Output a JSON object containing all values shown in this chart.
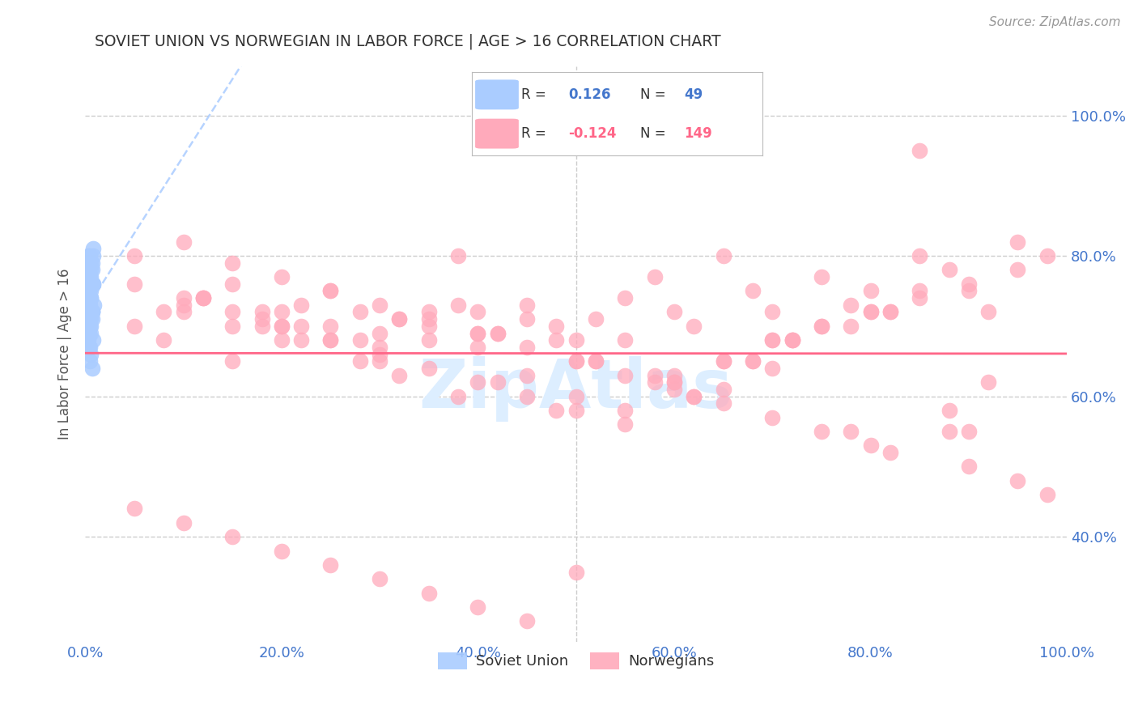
{
  "title": "SOVIET UNION VS NORWEGIAN IN LABOR FORCE | AGE > 16 CORRELATION CHART",
  "source": "Source: ZipAtlas.com",
  "ylabel": "In Labor Force | Age > 16",
  "xticklabels": [
    "0.0%",
    "20.0%",
    "40.0%",
    "60.0%",
    "80.0%",
    "100.0%"
  ],
  "yticklabels": [
    "100.0%",
    "80.0%",
    "60.0%",
    "40.0%"
  ],
  "xlim": [
    0.0,
    1.0
  ],
  "ylim": [
    0.25,
    1.07
  ],
  "yticks": [
    1.0,
    0.8,
    0.6,
    0.4
  ],
  "xticks": [
    0.0,
    0.2,
    0.4,
    0.6,
    0.8,
    1.0
  ],
  "background_color": "#ffffff",
  "grid_color": "#cccccc",
  "title_color": "#333333",
  "axis_label_color": "#555555",
  "tick_label_color": "#4477cc",
  "soviet_color": "#aaccff",
  "norwegian_color": "#ffaabb",
  "soviet_line_color": "#aaccff",
  "norwegian_line_color": "#ff6688",
  "watermark": "ZipAtlas",
  "watermark_color": "#ddeeff",
  "legend_label1": "Soviet Union",
  "legend_label2": "Norwegians",
  "soviet_x": [
    0.005,
    0.003,
    0.008,
    0.006,
    0.004,
    0.007,
    0.005,
    0.003,
    0.006,
    0.004,
    0.009,
    0.007,
    0.005,
    0.003,
    0.006,
    0.008,
    0.004,
    0.006,
    0.005,
    0.007,
    0.003,
    0.008,
    0.006,
    0.004,
    0.005,
    0.007,
    0.006,
    0.004,
    0.003,
    0.005,
    0.007,
    0.006,
    0.008,
    0.004,
    0.005,
    0.003,
    0.007,
    0.006,
    0.005,
    0.004,
    0.008,
    0.006,
    0.003,
    0.005,
    0.007,
    0.004,
    0.006,
    0.005,
    0.007
  ],
  "soviet_y": [
    0.79,
    0.8,
    0.81,
    0.78,
    0.77,
    0.79,
    0.8,
    0.76,
    0.75,
    0.74,
    0.73,
    0.72,
    0.71,
    0.7,
    0.69,
    0.68,
    0.67,
    0.66,
    0.65,
    0.64,
    0.75,
    0.76,
    0.74,
    0.73,
    0.72,
    0.71,
    0.7,
    0.69,
    0.68,
    0.67,
    0.78,
    0.77,
    0.76,
    0.75,
    0.74,
    0.73,
    0.72,
    0.71,
    0.7,
    0.69,
    0.8,
    0.79,
    0.78,
    0.77,
    0.76,
    0.75,
    0.74,
    0.73,
    0.72
  ],
  "norwegian_x": [
    0.05,
    0.08,
    0.1,
    0.12,
    0.15,
    0.18,
    0.2,
    0.22,
    0.25,
    0.28,
    0.3,
    0.32,
    0.35,
    0.38,
    0.4,
    0.42,
    0.45,
    0.48,
    0.5,
    0.52,
    0.55,
    0.58,
    0.6,
    0.62,
    0.65,
    0.68,
    0.7,
    0.72,
    0.75,
    0.78,
    0.8,
    0.82,
    0.85,
    0.88,
    0.9,
    0.92,
    0.95,
    0.98,
    0.15,
    0.2,
    0.25,
    0.3,
    0.35,
    0.4,
    0.45,
    0.5,
    0.55,
    0.6,
    0.65,
    0.7,
    0.1,
    0.15,
    0.2,
    0.25,
    0.3,
    0.35,
    0.4,
    0.45,
    0.5,
    0.55,
    0.6,
    0.65,
    0.7,
    0.75,
    0.8,
    0.85,
    0.9,
    0.12,
    0.18,
    0.22,
    0.28,
    0.32,
    0.38,
    0.42,
    0.48,
    0.52,
    0.58,
    0.62,
    0.68,
    0.72,
    0.78,
    0.82,
    0.88,
    0.05,
    0.1,
    0.15,
    0.2,
    0.25,
    0.3,
    0.35,
    0.4,
    0.45,
    0.5,
    0.55,
    0.6,
    0.65,
    0.7,
    0.75,
    0.8,
    0.85,
    0.9,
    0.95,
    0.08,
    0.12,
    0.18,
    0.22,
    0.28,
    0.32,
    0.38,
    0.42,
    0.48,
    0.52,
    0.58,
    0.62,
    0.68,
    0.72,
    0.78,
    0.82,
    0.88,
    0.92,
    0.05,
    0.1,
    0.15,
    0.2,
    0.25,
    0.3,
    0.35,
    0.4,
    0.45,
    0.5,
    0.55,
    0.6,
    0.65,
    0.7,
    0.75,
    0.8,
    0.85,
    0.9,
    0.95,
    0.98,
    0.05,
    0.1,
    0.15,
    0.2,
    0.25,
    0.3,
    0.35,
    0.4,
    0.45,
    0.5
  ],
  "norwegian_y": [
    0.7,
    0.68,
    0.72,
    0.74,
    0.76,
    0.71,
    0.7,
    0.73,
    0.75,
    0.72,
    0.69,
    0.71,
    0.68,
    0.8,
    0.72,
    0.69,
    0.73,
    0.7,
    0.68,
    0.71,
    0.74,
    0.77,
    0.72,
    0.7,
    0.8,
    0.75,
    0.72,
    0.68,
    0.77,
    0.73,
    0.75,
    0.72,
    0.8,
    0.78,
    0.75,
    0.72,
    0.82,
    0.8,
    0.65,
    0.68,
    0.7,
    0.67,
    0.72,
    0.69,
    0.71,
    0.65,
    0.68,
    0.63,
    0.61,
    0.64,
    0.73,
    0.7,
    0.72,
    0.68,
    0.65,
    0.7,
    0.67,
    0.63,
    0.6,
    0.58,
    0.62,
    0.65,
    0.68,
    0.7,
    0.72,
    0.75,
    0.55,
    0.74,
    0.72,
    0.7,
    0.68,
    0.71,
    0.73,
    0.69,
    0.68,
    0.65,
    0.63,
    0.6,
    0.65,
    0.68,
    0.7,
    0.72,
    0.55,
    0.76,
    0.74,
    0.72,
    0.7,
    0.68,
    0.66,
    0.64,
    0.62,
    0.6,
    0.58,
    0.56,
    0.62,
    0.65,
    0.68,
    0.7,
    0.72,
    0.74,
    0.76,
    0.78,
    0.72,
    0.74,
    0.7,
    0.68,
    0.65,
    0.63,
    0.6,
    0.62,
    0.58,
    0.65,
    0.62,
    0.6,
    0.65,
    0.68,
    0.55,
    0.52,
    0.58,
    0.62,
    0.8,
    0.82,
    0.79,
    0.77,
    0.75,
    0.73,
    0.71,
    0.69,
    0.67,
    0.65,
    0.63,
    0.61,
    0.59,
    0.57,
    0.55,
    0.53,
    0.95,
    0.5,
    0.48,
    0.46,
    0.44,
    0.42,
    0.4,
    0.38,
    0.36,
    0.34,
    0.32,
    0.3,
    0.28,
    0.35
  ]
}
